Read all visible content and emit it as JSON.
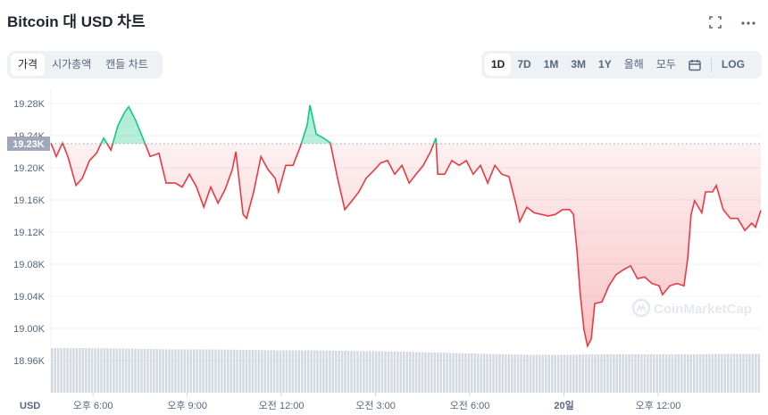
{
  "header": {
    "title": "Bitcoin 대 USD 차트",
    "fullscreen_icon": "fullscreen-icon",
    "more_icon": "more-icon"
  },
  "tabs": [
    {
      "label": "가격",
      "active": true
    },
    {
      "label": "시가총액",
      "active": false
    },
    {
      "label": "캔들 차트",
      "active": false
    }
  ],
  "ranges": [
    {
      "label": "1D",
      "active": true
    },
    {
      "label": "7D"
    },
    {
      "label": "1M"
    },
    {
      "label": "3M"
    },
    {
      "label": "1Y"
    },
    {
      "label": "올해"
    },
    {
      "label": "모두"
    }
  ],
  "calendar_icon": "calendar-icon",
  "log_label": "LOG",
  "watermark": "CoinMarketCap",
  "chart_data": {
    "type": "line",
    "title": "Bitcoin 대 USD 차트",
    "ylabel": "USD",
    "currency_label": "USD",
    "baseline": 19230,
    "baseline_label": "19.23K",
    "ylim": [
      18940,
      19297
    ],
    "xlim": [
      -1.34,
      21.27
    ],
    "x_unit": "hours since 오후 6:00",
    "yticks": [
      {
        "v": 19280,
        "label": "19.28K"
      },
      {
        "v": 19240,
        "label": "19.24K"
      },
      {
        "v": 19200,
        "label": "19.20K"
      },
      {
        "v": 19160,
        "label": "19.16K"
      },
      {
        "v": 19120,
        "label": "19.12K"
      },
      {
        "v": 19080,
        "label": "19.08K"
      },
      {
        "v": 19040,
        "label": "19.04K"
      },
      {
        "v": 19000,
        "label": "19.00K"
      },
      {
        "v": 18960,
        "label": "18.96K"
      }
    ],
    "xticks": [
      {
        "v": 0,
        "label": "오후 6:00"
      },
      {
        "v": 3,
        "label": "오후 9:00"
      },
      {
        "v": 6,
        "label": "오전 12:00"
      },
      {
        "v": 9,
        "label": "오전 3:00"
      },
      {
        "v": 12,
        "label": "오전 6:00"
      },
      {
        "v": 15,
        "label": "20일",
        "bold": true
      },
      {
        "v": 18,
        "label": "오후 12:00"
      }
    ],
    "colors": {
      "up": "#16c784",
      "down": "#ea3943"
    },
    "points": [
      [
        -1.34,
        19231
      ],
      [
        -1.17,
        19214
      ],
      [
        -0.97,
        19231
      ],
      [
        -0.8,
        19214
      ],
      [
        -0.54,
        19178
      ],
      [
        -0.34,
        19187
      ],
      [
        -0.11,
        19209
      ],
      [
        0.11,
        19218
      ],
      [
        0.34,
        19237
      ],
      [
        0.57,
        19222
      ],
      [
        0.8,
        19253
      ],
      [
        1.02,
        19270
      ],
      [
        1.14,
        19276
      ],
      [
        1.36,
        19259
      ],
      [
        1.59,
        19237
      ],
      [
        1.82,
        19214
      ],
      [
        2.1,
        19218
      ],
      [
        2.33,
        19181
      ],
      [
        2.62,
        19181
      ],
      [
        2.84,
        19176
      ],
      [
        3.07,
        19192
      ],
      [
        3.3,
        19176
      ],
      [
        3.53,
        19151
      ],
      [
        3.75,
        19176
      ],
      [
        3.98,
        19156
      ],
      [
        4.21,
        19173
      ],
      [
        4.44,
        19198
      ],
      [
        4.55,
        19220
      ],
      [
        4.78,
        19142
      ],
      [
        4.89,
        19137
      ],
      [
        5.12,
        19170
      ],
      [
        5.35,
        19214
      ],
      [
        5.57,
        19198
      ],
      [
        5.8,
        19187
      ],
      [
        5.91,
        19170
      ],
      [
        6.14,
        19203
      ],
      [
        6.37,
        19203
      ],
      [
        6.6,
        19226
      ],
      [
        6.82,
        19253
      ],
      [
        6.91,
        19278
      ],
      [
        7.11,
        19242
      ],
      [
        7.34,
        19237
      ],
      [
        7.56,
        19231
      ],
      [
        7.79,
        19187
      ],
      [
        8.02,
        19148
      ],
      [
        8.25,
        19159
      ],
      [
        8.47,
        19170
      ],
      [
        8.7,
        19187
      ],
      [
        8.93,
        19196
      ],
      [
        9.16,
        19206
      ],
      [
        9.38,
        19209
      ],
      [
        9.61,
        19192
      ],
      [
        9.84,
        19203
      ],
      [
        10.07,
        19181
      ],
      [
        10.29,
        19192
      ],
      [
        10.52,
        19203
      ],
      [
        10.75,
        19220
      ],
      [
        10.92,
        19237
      ],
      [
        10.98,
        19192
      ],
      [
        11.2,
        19192
      ],
      [
        11.43,
        19209
      ],
      [
        11.66,
        19203
      ],
      [
        11.89,
        19209
      ],
      [
        12.11,
        19192
      ],
      [
        12.34,
        19203
      ],
      [
        12.57,
        19181
      ],
      [
        12.8,
        19203
      ],
      [
        13.02,
        19192
      ],
      [
        13.25,
        19189
      ],
      [
        13.48,
        19153
      ],
      [
        13.59,
        19133
      ],
      [
        13.82,
        19151
      ],
      [
        14.05,
        19144
      ],
      [
        14.27,
        19142
      ],
      [
        14.5,
        19140
      ],
      [
        14.73,
        19142
      ],
      [
        14.96,
        19148
      ],
      [
        15.18,
        19148
      ],
      [
        15.3,
        19142
      ],
      [
        15.41,
        19098
      ],
      [
        15.52,
        19042
      ],
      [
        15.64,
        18998
      ],
      [
        15.75,
        18978
      ],
      [
        15.87,
        18987
      ],
      [
        15.98,
        19031
      ],
      [
        16.21,
        19033
      ],
      [
        16.43,
        19053
      ],
      [
        16.66,
        19067
      ],
      [
        16.89,
        19073
      ],
      [
        17.12,
        19078
      ],
      [
        17.34,
        19062
      ],
      [
        17.57,
        19064
      ],
      [
        17.8,
        19056
      ],
      [
        18.03,
        19053
      ],
      [
        18.14,
        19042
      ],
      [
        18.37,
        19053
      ],
      [
        18.6,
        19056
      ],
      [
        18.82,
        19053
      ],
      [
        18.94,
        19087
      ],
      [
        19.05,
        19142
      ],
      [
        19.16,
        19159
      ],
      [
        19.39,
        19144
      ],
      [
        19.51,
        19170
      ],
      [
        19.73,
        19170
      ],
      [
        19.85,
        19178
      ],
      [
        20.07,
        19148
      ],
      [
        20.3,
        19137
      ],
      [
        20.53,
        19137
      ],
      [
        20.76,
        19122
      ],
      [
        20.98,
        19131
      ],
      [
        21.1,
        19126
      ],
      [
        21.27,
        19147
      ]
    ],
    "volume_relative": [
      1.0,
      1.0,
      0.99,
      0.98,
      0.97,
      0.97,
      0.96,
      0.95,
      0.95,
      0.94,
      0.93,
      0.92,
      0.9,
      0.88,
      0.86,
      0.85,
      0.85,
      0.86,
      0.86,
      0.86,
      0.86,
      0.87,
      0.87
    ]
  }
}
